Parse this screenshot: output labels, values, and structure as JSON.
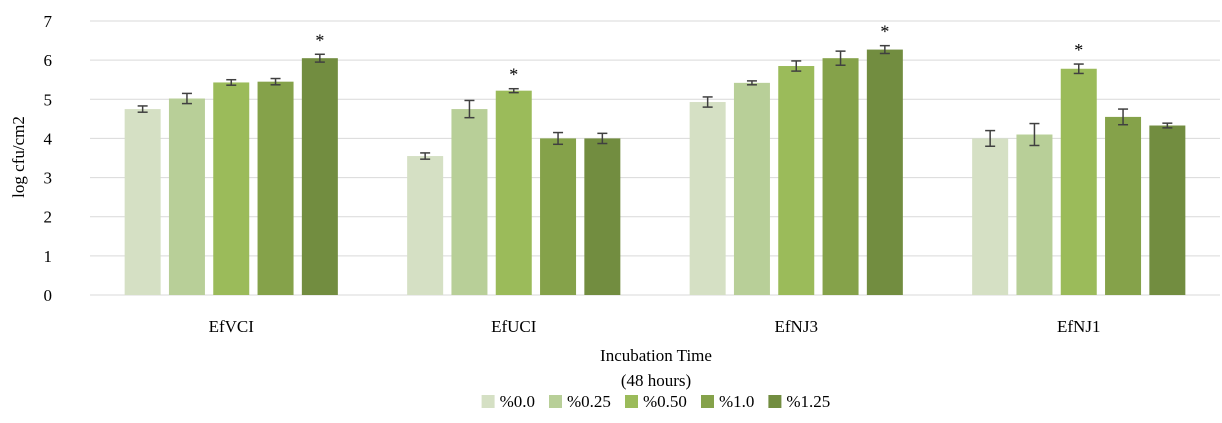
{
  "chart_data": {
    "type": "bar",
    "title": "",
    "xlabel": "Incubation Time",
    "xlabel_sub": "(48 hours)",
    "ylabel": "log cfu/cm2",
    "ylim": [
      0,
      7
    ],
    "yticks": [
      0,
      1,
      2,
      3,
      4,
      5,
      6,
      7
    ],
    "grid": true,
    "legend_position": "bottom",
    "categories": [
      "EfVCI",
      "EfUCI",
      "EfNJ3",
      "EfNJ1"
    ],
    "series": [
      {
        "name": "%0.0",
        "color": "#d5e0c4",
        "values": [
          4.75,
          3.55,
          4.93,
          4.0
        ],
        "errors": [
          0.08,
          0.08,
          0.13,
          0.2
        ]
      },
      {
        "name": "%0.25",
        "color": "#b8cf98",
        "values": [
          5.02,
          4.75,
          5.42,
          4.1
        ],
        "errors": [
          0.13,
          0.22,
          0.05,
          0.28
        ]
      },
      {
        "name": "%0.50",
        "color": "#9bbb5a",
        "values": [
          5.43,
          5.22,
          5.85,
          5.78
        ],
        "errors": [
          0.07,
          0.05,
          0.13,
          0.12
        ]
      },
      {
        "name": "%1.0",
        "color": "#85a24a",
        "values": [
          5.45,
          4.0,
          6.05,
          4.55
        ],
        "errors": [
          0.08,
          0.15,
          0.18,
          0.2
        ]
      },
      {
        "name": "%1.25",
        "color": "#728d40",
        "values": [
          6.05,
          4.0,
          6.27,
          4.33
        ],
        "errors": [
          0.1,
          0.13,
          0.1,
          0.06
        ]
      }
    ],
    "annotations": [
      {
        "category": "EfVCI",
        "series": "%1.25",
        "text": "*"
      },
      {
        "category": "EfUCI",
        "series": "%0.50",
        "text": "*"
      },
      {
        "category": "EfNJ3",
        "series": "%1.25",
        "text": "*"
      },
      {
        "category": "EfNJ1",
        "series": "%0.50",
        "text": "*"
      }
    ]
  }
}
